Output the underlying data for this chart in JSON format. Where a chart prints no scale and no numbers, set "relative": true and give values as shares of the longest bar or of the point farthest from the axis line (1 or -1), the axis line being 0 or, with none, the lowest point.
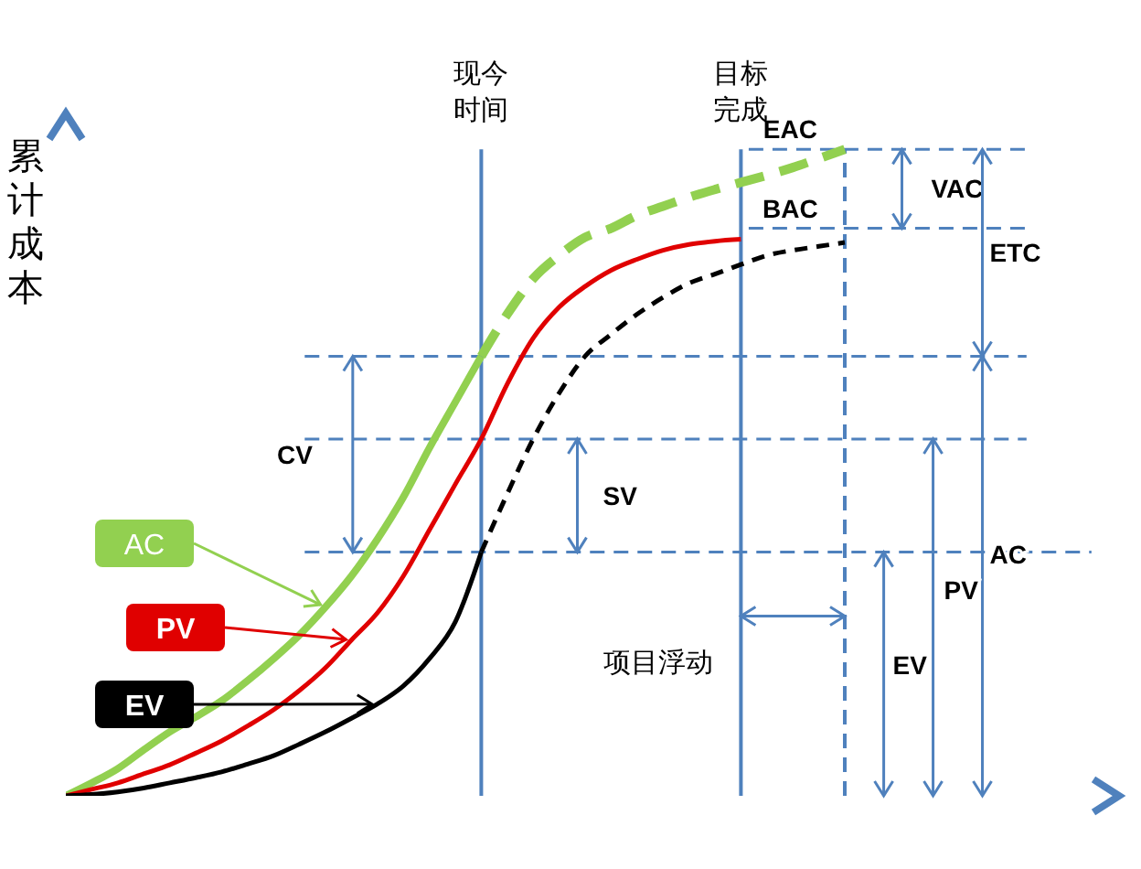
{
  "chart_data": {
    "type": "line",
    "relative": true,
    "ylabel": "累计成本",
    "categories": [
      null,
      null,
      null,
      null,
      null,
      null,
      null,
      null,
      null,
      null,
      null,
      null,
      null,
      null,
      null,
      null,
      null,
      null,
      null,
      null,
      null,
      null,
      null,
      null,
      null,
      null,
      null,
      null,
      null,
      null,
      null
    ],
    "series": [
      {
        "name": "AC",
        "color": "#92d050",
        "values": [
          0,
          0.02,
          0.042,
          0.071,
          0.099,
          0.122,
          0.147,
          0.178,
          0.212,
          0.249,
          0.292,
          0.34,
          0.397,
          0.462,
          0.538,
          0.609,
          0.68,
          null,
          null,
          null,
          null,
          null,
          null,
          null,
          null,
          null,
          null,
          null,
          null,
          null,
          null
        ]
      },
      {
        "color": "#92d050",
        "line_style": "dashed",
        "values": [
          null,
          null,
          null,
          null,
          null,
          null,
          null,
          null,
          null,
          null,
          null,
          null,
          null,
          null,
          null,
          null,
          0.68,
          0.745,
          0.8,
          0.836,
          0.864,
          0.878,
          0.898,
          0.912,
          0.926,
          0.938,
          0.949,
          0.96,
          0.972,
          0.986,
          1
        ]
      },
      {
        "name": "PV",
        "color": "#e00000",
        "values": [
          0,
          0.01,
          0.02,
          0.034,
          0.048,
          0.066,
          0.085,
          0.108,
          0.133,
          0.163,
          0.198,
          0.241,
          0.283,
          0.34,
          0.411,
          0.482,
          0.552,
          0.637,
          0.708,
          0.756,
          0.788,
          0.813,
          0.83,
          0.844,
          0.853,
          0.858,
          0.861,
          null,
          null,
          null,
          null
        ]
      },
      {
        "name": "EV",
        "color": "#000000",
        "values": [
          0,
          0.002,
          0.006,
          0.012,
          0.02,
          0.028,
          0.037,
          0.049,
          0.062,
          0.08,
          0.099,
          0.12,
          0.142,
          0.17,
          0.212,
          0.269,
          0.377,
          null,
          null,
          null,
          null,
          null,
          null,
          null,
          null,
          null,
          null,
          null,
          null,
          null,
          null
        ]
      },
      {
        "color": "#000000",
        "line_style": "dashed",
        "values": [
          null,
          null,
          null,
          null,
          null,
          null,
          null,
          null,
          null,
          null,
          null,
          null,
          null,
          null,
          null,
          null,
          0.377,
          0.467,
          0.552,
          0.623,
          0.68,
          0.714,
          0.745,
          0.771,
          0.793,
          0.807,
          0.822,
          0.836,
          0.844,
          0.85,
          0.856
        ]
      }
    ],
    "ref_lines": [
      {
        "axis": "y",
        "value": 1,
        "label": "EAC",
        "color": "#4f81bd",
        "line_style": "dashed"
      },
      {
        "axis": "y",
        "value": 0.878,
        "label": "BAC",
        "color": "#4f81bd",
        "line_style": "dashed"
      },
      {
        "axis": "y",
        "value": 0.68,
        "color": "#4f81bd",
        "line_style": "dashed"
      },
      {
        "axis": "y",
        "value": 0.552,
        "color": "#4f81bd",
        "line_style": "dashed"
      },
      {
        "axis": "y",
        "value": 0.377,
        "color": "#4f81bd",
        "line_style": "dashed"
      }
    ],
    "annotations": [
      "CV",
      "SV",
      "VAC",
      "ETC",
      "AC",
      "PV",
      "EV",
      "项目浮动",
      "现今时间",
      "目标完成"
    ],
    "grid": false,
    "legend": "left",
    "marker": "none"
  }
}
